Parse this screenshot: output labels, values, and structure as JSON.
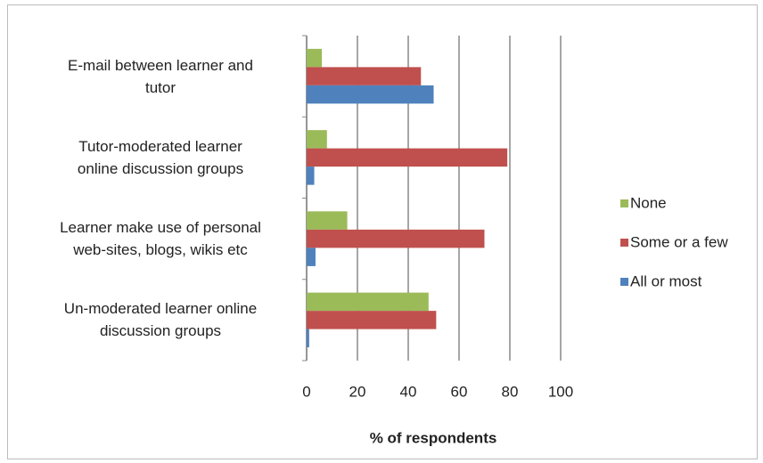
{
  "chart_data": {
    "type": "bar",
    "orientation": "horizontal",
    "categories": [
      "E-mail between learner and\ntutor",
      "Tutor-moderated learner\nonline discussion groups",
      "Learner make use of personal\nweb-sites, blogs, wikis etc",
      "Un-moderated learner online\ndiscussion groups"
    ],
    "series": [
      {
        "name": "None",
        "color": "#9bbb59",
        "values": [
          6,
          8,
          16,
          48
        ]
      },
      {
        "name": "Some or a few",
        "color": "#c0504d",
        "values": [
          45,
          79,
          70,
          51
        ]
      },
      {
        "name": "All or most",
        "color": "#4f81bd",
        "values": [
          50,
          3,
          3.5,
          1
        ]
      }
    ],
    "xlabel": "% of respondents",
    "xlim": [
      0,
      100
    ],
    "xticks": [
      0,
      20,
      40,
      60,
      80,
      100
    ],
    "grid": true,
    "legend": "right"
  }
}
